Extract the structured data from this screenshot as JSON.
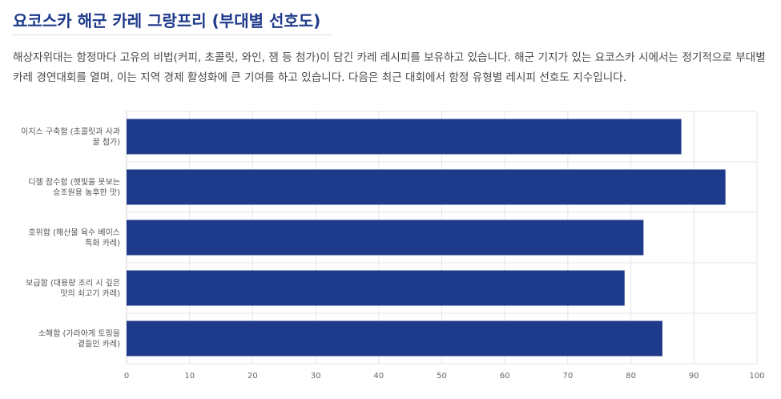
{
  "header": {
    "title": "요코스카 해군 카레 그랑프리 (부대별 선호도)",
    "description": "해상자위대는 함정마다 고유의 비법(커피, 초콜릿, 와인, 잼 등 첨가)이 담긴 카레 레시피를 보유하고 있습니다. 해군 기지가 있는 요코스카 시에서는 정기적으로 부대별 카레 경연대회를 열며, 이는 지역 경제 활성화에 큰 기여를 하고 있습니다. 다음은 최근 대회에서 함정 유형별 레시피 선호도 지수입니다."
  },
  "chart_data": {
    "type": "bar",
    "orientation": "horizontal",
    "categories": [
      [
        "이지스 구축함 (초콜릿과 사과",
        "꿀 첨가)"
      ],
      [
        "디젤 잠수함 (햇빛을 못보는",
        "승조원용 농후한 맛)"
      ],
      [
        "호위함 (해산물 육수 베이스",
        "특화 카레)"
      ],
      [
        "보급함 (대용량 조리 시 깊은",
        "맛의 쇠고기 카레)"
      ],
      [
        "소해함 (가라아게 토핑을",
        "곁들인 카레)"
      ]
    ],
    "values": [
      88,
      95,
      82,
      79,
      85
    ],
    "xlim": [
      0,
      100
    ],
    "xticks": [
      0,
      10,
      20,
      30,
      40,
      50,
      60,
      70,
      80,
      90,
      100
    ],
    "bar_color": "#1e3a8a",
    "grid": true
  }
}
